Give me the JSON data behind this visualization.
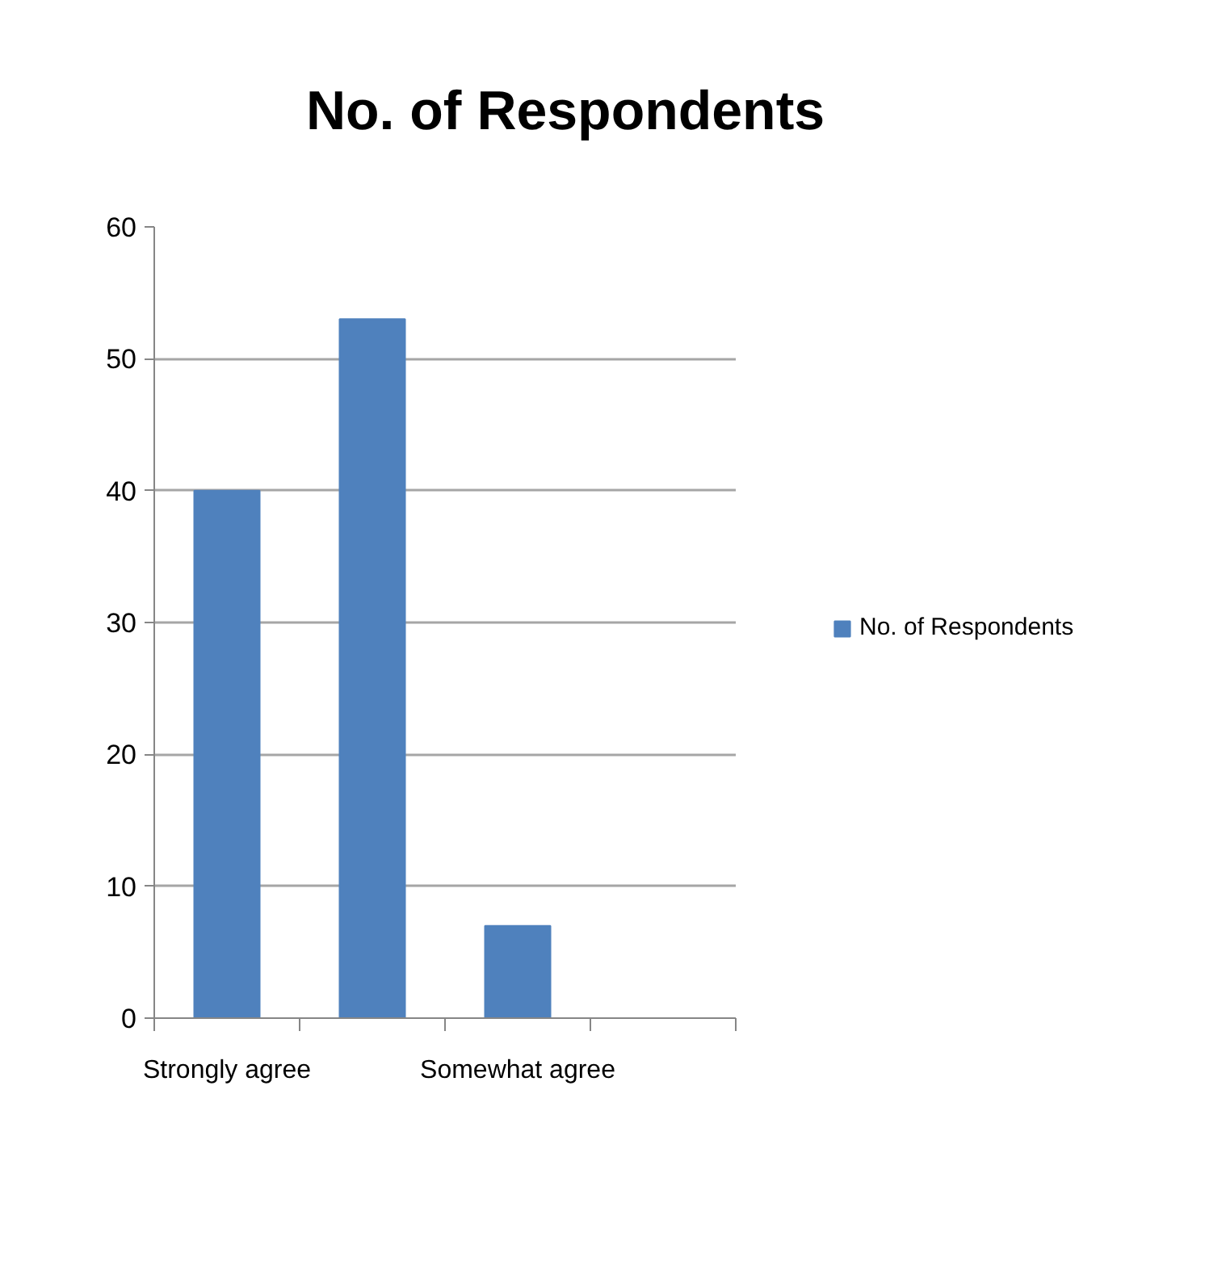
{
  "chart_data": {
    "type": "bar",
    "title": "No. of Respondents",
    "categories": [
      "Strongly agree",
      null,
      "Somewhat agree",
      null
    ],
    "series": [
      {
        "name": "No. of Respondents",
        "color": "#4f81bd",
        "values": [
          40,
          53,
          7,
          0
        ]
      }
    ],
    "ylim": [
      0,
      60
    ],
    "yticks": [
      0,
      10,
      20,
      30,
      40,
      50,
      60
    ],
    "grid": "y",
    "legend": "right"
  }
}
